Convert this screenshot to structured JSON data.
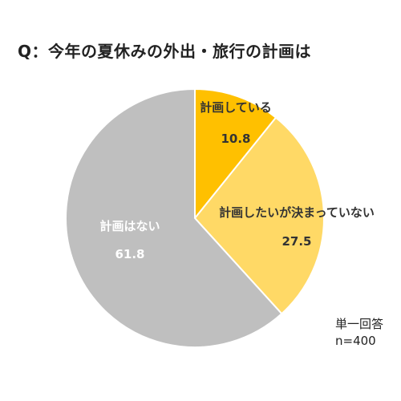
{
  "chart_data": {
    "type": "pie",
    "title": "Q：今年の夏休みの外出・旅行の計画は",
    "start_angle": "12 o'clock",
    "direction": "clockwise",
    "categories": [
      "計画している",
      "計画したいが決まっていない",
      "計画はない"
    ],
    "values": [
      10.8,
      27.5,
      61.8
    ],
    "colors": [
      "#FFC000",
      "#FFD966",
      "#BFBFBF"
    ],
    "label_colors": [
      "#333333",
      "#333333",
      "#ffffff"
    ],
    "border_color": "#ffffff",
    "notes": [
      "単一回答",
      "n=400"
    ]
  }
}
